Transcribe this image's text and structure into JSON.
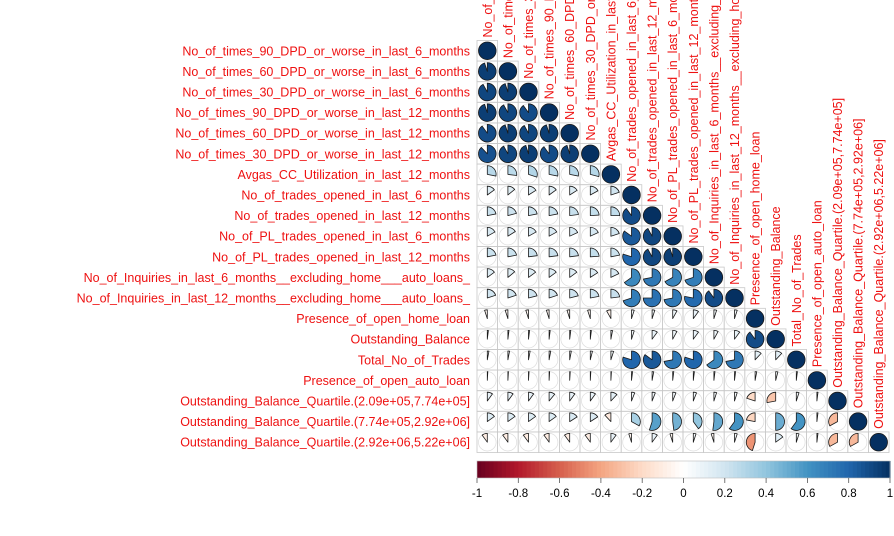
{
  "chart_data": {
    "type": "heatmap",
    "style": "pie-correlogram-lower-triangle",
    "variables": [
      "No_of_times_90_DPD_or_worse_in_last_6_months",
      "No_of_times_60_DPD_or_worse_in_last_6_months",
      "No_of_times_30_DPD_or_worse_in_last_6_months",
      "No_of_times_90_DPD_or_worse_in_last_12_months",
      "No_of_times_60_DPD_or_worse_in_last_12_months",
      "No_of_times_30_DPD_or_worse_in_last_12_months",
      "Avgas_CC_Utilization_in_last_12_months",
      "No_of_trades_opened_in_last_6_months",
      "No_of_trades_opened_in_last_12_months",
      "No_of_PL_trades_opened_in_last_6_months",
      "No_of_PL_trades_opened_in_last_12_months",
      "No_of_Inquiries_in_last_6_months__excluding_home___auto_loans_",
      "No_of_Inquiries_in_last_12_months__excluding_home___auto_loans_",
      "Presence_of_open_home_loan",
      "Outstanding_Balance",
      "Total_No_of_Trades",
      "Presence_of_open_auto_loan",
      "Outstanding_Balance_Quartile.(2.09e+05,7.74e+05]",
      "Outstanding_Balance_Quartile.(7.74e+05,2.92e+06]",
      "Outstanding_Balance_Quartile.(2.92e+06,5.22e+06]"
    ],
    "correlations": [
      [
        1
      ],
      [
        0.95,
        1
      ],
      [
        0.92,
        0.95,
        1
      ],
      [
        0.95,
        0.92,
        0.9,
        1
      ],
      [
        0.9,
        0.95,
        0.92,
        0.95,
        1
      ],
      [
        0.88,
        0.92,
        0.95,
        0.9,
        0.95,
        1
      ],
      [
        0.28,
        0.27,
        0.3,
        0.28,
        0.28,
        0.29,
        1
      ],
      [
        0.15,
        0.14,
        0.16,
        0.15,
        0.16,
        0.17,
        0.2,
        1
      ],
      [
        0.22,
        0.21,
        0.22,
        0.22,
        0.23,
        0.24,
        0.25,
        0.9,
        1
      ],
      [
        0.17,
        0.16,
        0.17,
        0.17,
        0.18,
        0.18,
        0.2,
        0.85,
        0.92,
        1
      ],
      [
        0.22,
        0.22,
        0.23,
        0.23,
        0.23,
        0.24,
        0.22,
        0.8,
        0.92,
        0.95,
        1
      ],
      [
        0.15,
        0.14,
        0.15,
        0.15,
        0.15,
        0.16,
        0.18,
        0.65,
        0.72,
        0.67,
        0.7,
        1
      ],
      [
        0.2,
        0.2,
        0.21,
        0.2,
        0.21,
        0.22,
        0.23,
        0.7,
        0.75,
        0.72,
        0.78,
        0.9,
        1
      ],
      [
        -0.05,
        -0.05,
        -0.05,
        -0.05,
        -0.05,
        -0.05,
        -0.08,
        0.05,
        0.05,
        0.08,
        0.1,
        0.05,
        0.05,
        1
      ],
      [
        0.02,
        0.02,
        0.02,
        0.02,
        0.02,
        0.02,
        0.03,
        0.05,
        0.1,
        0.08,
        0.1,
        0.08,
        0.1,
        0.9,
        1
      ],
      [
        0.03,
        0.03,
        0.03,
        0.03,
        0.03,
        0.04,
        0.05,
        0.8,
        0.85,
        0.72,
        0.8,
        0.65,
        0.72,
        0.12,
        0.12,
        1
      ],
      [
        0.01,
        0.01,
        0.01,
        0.01,
        0.01,
        0.01,
        0.01,
        0.02,
        0.03,
        0.02,
        0.02,
        0.02,
        0.02,
        0.03,
        0.04,
        0.02,
        1
      ],
      [
        0.1,
        0.1,
        0.1,
        0.11,
        0.1,
        0.1,
        0.12,
        0.06,
        0.06,
        0.06,
        0.06,
        0.05,
        0.05,
        -0.2,
        -0.28,
        0.05,
        0.02,
        1
      ],
      [
        0.15,
        0.15,
        0.15,
        0.15,
        0.16,
        0.16,
        -0.12,
        0.33,
        0.55,
        0.48,
        0.4,
        0.52,
        0.6,
        -0.22,
        0.5,
        0.6,
        0.02,
        -0.33,
        1
      ],
      [
        -0.1,
        -0.1,
        -0.1,
        -0.1,
        -0.1,
        -0.1,
        0.1,
        -0.05,
        0.1,
        -0.05,
        0.05,
        -0.05,
        0.05,
        -0.45,
        0.15,
        0.05,
        0.02,
        -0.33,
        -0.33,
        1
      ]
    ],
    "colorbar": {
      "min": -1,
      "max": 1,
      "ticks": [
        "-1",
        "-0.8",
        "-0.6",
        "-0.4",
        "-0.2",
        "0",
        "0.2",
        "0.4",
        "0.6",
        "0.8",
        "1"
      ],
      "palette": [
        "#67001f",
        "#b2182b",
        "#d6604d",
        "#f4a582",
        "#fddbc7",
        "#ffffff",
        "#d1e5f0",
        "#92c5de",
        "#4393c3",
        "#2166ac",
        "#053061"
      ]
    },
    "label_color": "#ee1111",
    "grid": true
  }
}
